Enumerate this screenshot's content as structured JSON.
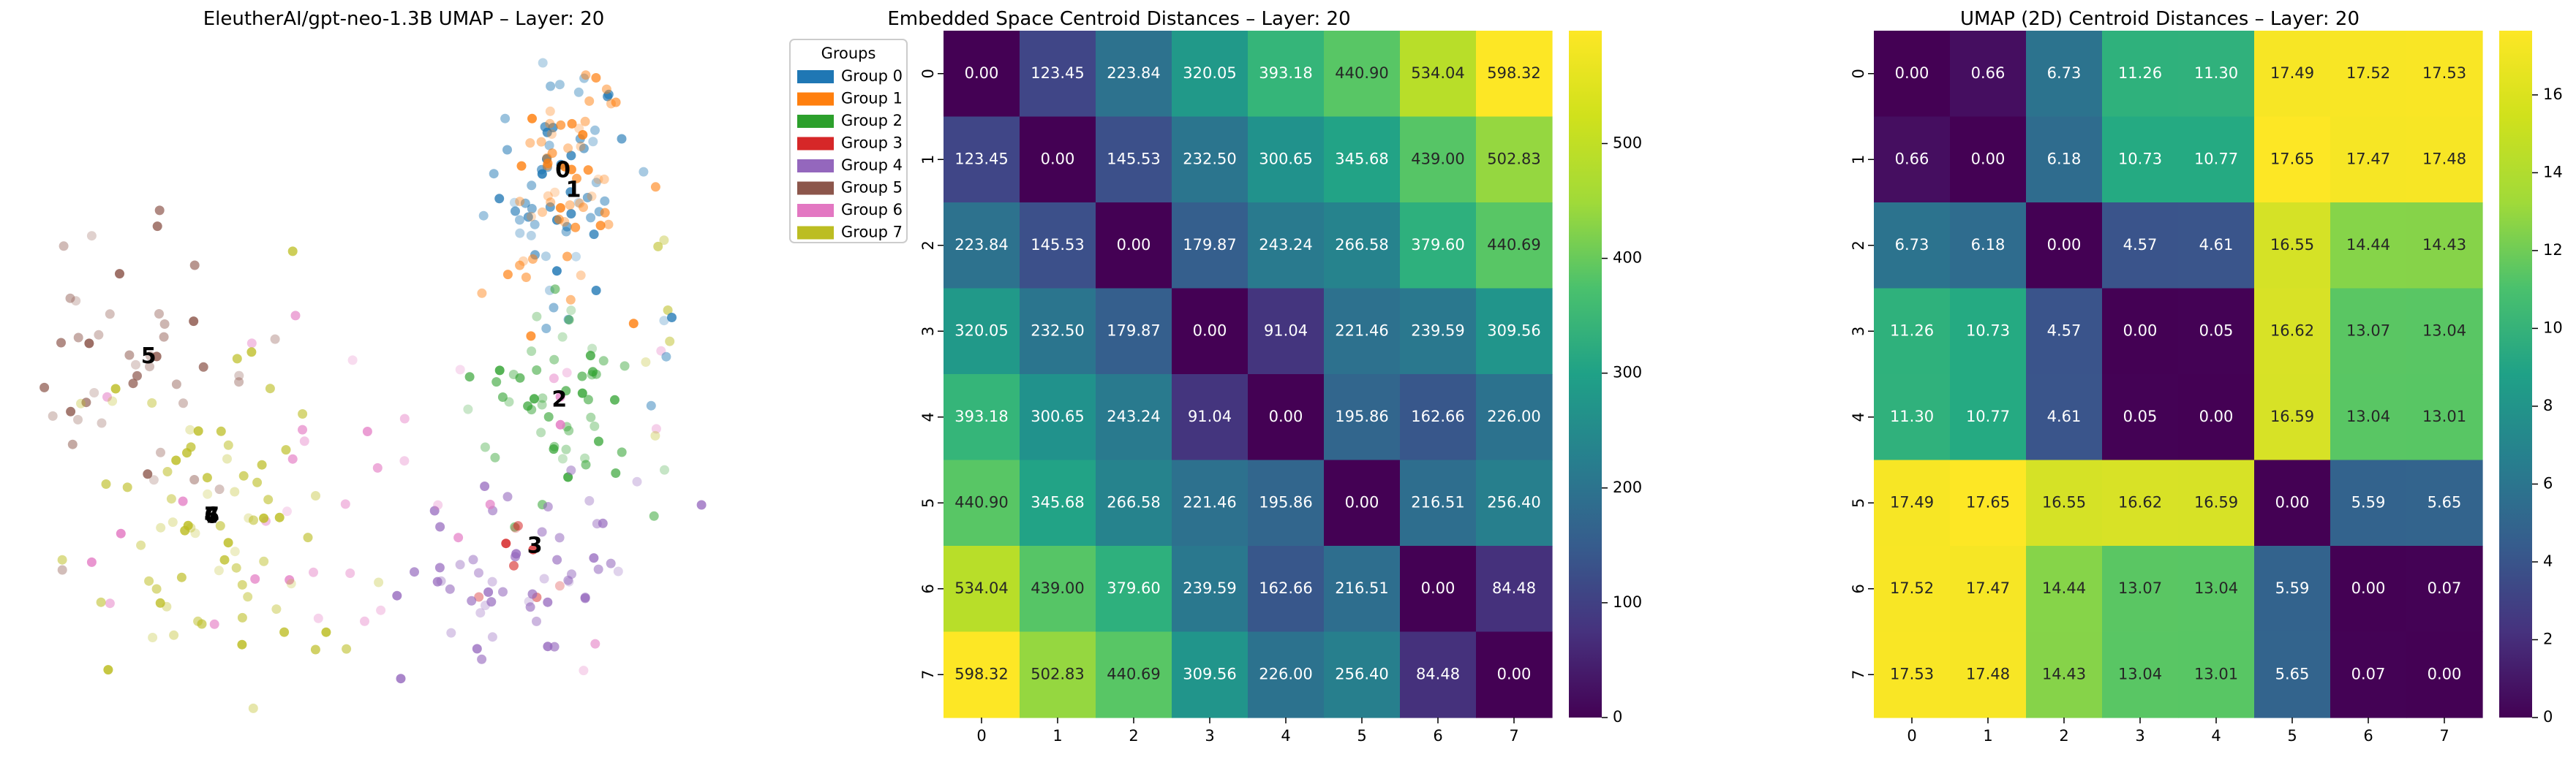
{
  "chart_data": [
    {
      "type": "scatter",
      "title": "EleutherAI/gpt-neo-1.3B UMAP – Layer: 20",
      "legend": {
        "title": "Groups",
        "placement": "top-right",
        "entries": [
          "Group 0",
          "Group 1",
          "Group 2",
          "Group 3",
          "Group 4",
          "Group 5",
          "Group 6",
          "Group 7"
        ]
      },
      "colors": [
        "#1f77b4",
        "#ff7f0e",
        "#2ca02c",
        "#d62728",
        "#9467bd",
        "#8c564b",
        "#e377c2",
        "#bcbd22"
      ],
      "axes_visible": false,
      "xlim": [
        0,
        10
      ],
      "ylim": [
        0,
        10
      ],
      "centroid_labels": [
        {
          "label": "0",
          "x": 7.6,
          "y": 8.2
        },
        {
          "label": "1",
          "x": 7.75,
          "y": 7.9
        },
        {
          "label": "2",
          "x": 7.55,
          "y": 4.75
        },
        {
          "label": "3",
          "x": 7.2,
          "y": 2.55
        },
        {
          "label": "4",
          "x": 2.6,
          "y": 3.0
        },
        {
          "label": "5",
          "x": 1.7,
          "y": 5.4
        },
        {
          "label": "6",
          "x": 2.6,
          "y": 3.0
        },
        {
          "label": "7",
          "x": 2.6,
          "y": 3.0
        }
      ],
      "clusters": [
        {
          "group": 0,
          "cx": 7.5,
          "cy": 8.0,
          "sx": 0.5,
          "sy": 0.9,
          "n": 60
        },
        {
          "group": 1,
          "cx": 7.6,
          "cy": 7.9,
          "sx": 0.5,
          "sy": 0.9,
          "n": 60
        },
        {
          "group": 2,
          "cx": 7.4,
          "cy": 4.8,
          "sx": 0.55,
          "sy": 0.9,
          "n": 55
        },
        {
          "group": 3,
          "cx": 6.9,
          "cy": 2.6,
          "sx": 0.4,
          "sy": 0.4,
          "n": 8
        },
        {
          "group": 4,
          "cx": 7.0,
          "cy": 2.3,
          "sx": 0.8,
          "sy": 0.6,
          "n": 55
        },
        {
          "group": 5,
          "cx": 1.4,
          "cy": 5.2,
          "sx": 0.9,
          "sy": 0.9,
          "n": 45
        },
        {
          "group": 6,
          "cx": 5.0,
          "cy": 3.0,
          "sx": 2.5,
          "sy": 1.6,
          "n": 40
        },
        {
          "group": 7,
          "cx": 2.6,
          "cy": 3.0,
          "sx": 1.0,
          "sy": 1.3,
          "n": 75
        },
        {
          "group": 7,
          "cx": 9.0,
          "cy": 5.5,
          "sx": 0.12,
          "sy": 1.2,
          "n": 6
        },
        {
          "group": 0,
          "cx": 9.0,
          "cy": 6.0,
          "sx": 0.1,
          "sy": 1.0,
          "n": 4
        }
      ]
    },
    {
      "type": "heatmap",
      "title": "Embedded Space Centroid Distances – Layer: 20",
      "x": [
        "0",
        "1",
        "2",
        "3",
        "4",
        "5",
        "6",
        "7"
      ],
      "y": [
        "0",
        "1",
        "2",
        "3",
        "4",
        "5",
        "6",
        "7"
      ],
      "values": [
        [
          0.0,
          123.45,
          223.84,
          320.05,
          393.18,
          440.9,
          534.04,
          598.32
        ],
        [
          123.45,
          0.0,
          145.53,
          232.5,
          300.65,
          345.68,
          439.0,
          502.83
        ],
        [
          223.84,
          145.53,
          0.0,
          179.87,
          243.24,
          266.58,
          379.6,
          440.69
        ],
        [
          320.05,
          232.5,
          179.87,
          0.0,
          91.04,
          221.46,
          239.59,
          309.56
        ],
        [
          393.18,
          300.65,
          243.24,
          91.04,
          0.0,
          195.86,
          162.66,
          226.0
        ],
        [
          440.9,
          345.68,
          266.58,
          221.46,
          195.86,
          0.0,
          216.51,
          256.4
        ],
        [
          534.04,
          439.0,
          379.6,
          239.59,
          162.66,
          216.51,
          0.0,
          84.48
        ],
        [
          598.32,
          502.83,
          440.69,
          309.56,
          226.0,
          256.4,
          84.48,
          0.0
        ]
      ],
      "colormap": "viridis",
      "vmin": 0,
      "vmax": 598.32,
      "colorbar_ticks": [
        "0",
        "100",
        "200",
        "300",
        "400",
        "500"
      ],
      "colorbar_tick_values": [
        0,
        100,
        200,
        300,
        400,
        500
      ]
    },
    {
      "type": "heatmap",
      "title": "UMAP (2D) Centroid Distances – Layer: 20",
      "x": [
        "0",
        "1",
        "2",
        "3",
        "4",
        "5",
        "6",
        "7"
      ],
      "y": [
        "0",
        "1",
        "2",
        "3",
        "4",
        "5",
        "6",
        "7"
      ],
      "values": [
        [
          0.0,
          0.66,
          6.73,
          11.26,
          11.3,
          17.49,
          17.52,
          17.53
        ],
        [
          0.66,
          0.0,
          6.18,
          10.73,
          10.77,
          17.65,
          17.47,
          17.48
        ],
        [
          6.73,
          6.18,
          0.0,
          4.57,
          4.61,
          16.55,
          14.44,
          14.43
        ],
        [
          11.26,
          10.73,
          4.57,
          0.0,
          0.05,
          16.62,
          13.07,
          13.04
        ],
        [
          11.3,
          10.77,
          4.61,
          0.05,
          0.0,
          16.59,
          13.04,
          13.01
        ],
        [
          17.49,
          17.65,
          16.55,
          16.62,
          16.59,
          0.0,
          5.59,
          5.65
        ],
        [
          17.52,
          17.47,
          14.44,
          13.07,
          13.04,
          5.59,
          0.0,
          0.07
        ],
        [
          17.53,
          17.48,
          14.43,
          13.04,
          13.01,
          5.65,
          0.07,
          0.0
        ]
      ],
      "colormap": "viridis",
      "vmin": 0,
      "vmax": 17.65,
      "colorbar_ticks": [
        "0",
        "2",
        "4",
        "6",
        "8",
        "10",
        "12",
        "14",
        "16"
      ],
      "colorbar_tick_values": [
        0,
        2,
        4,
        6,
        8,
        10,
        12,
        14,
        16
      ]
    }
  ]
}
